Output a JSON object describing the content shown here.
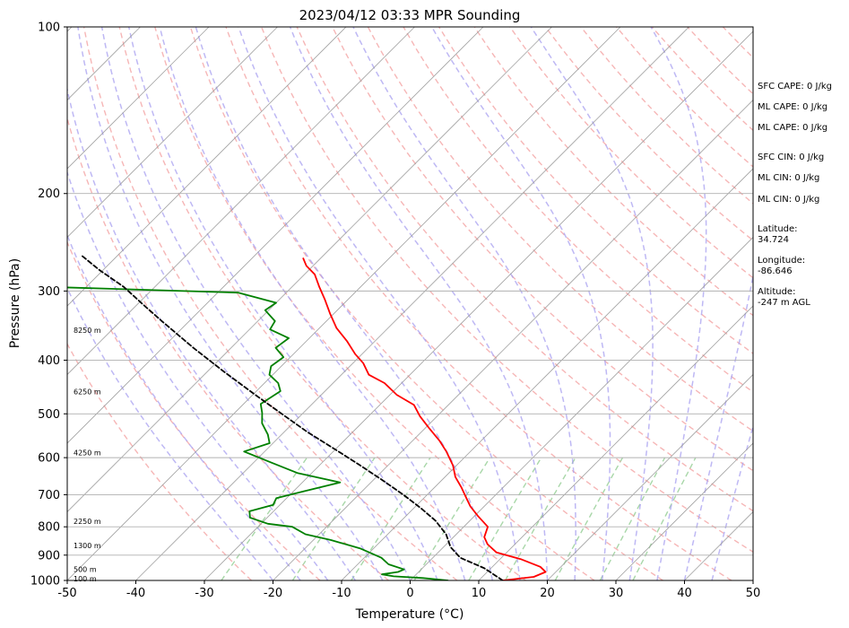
{
  "chart_data": {
    "type": "line",
    "title": "2023/04/12 03:33 MPR Sounding",
    "xlabel": "Temperature (°C)",
    "ylabel": "Pressure (hPa)",
    "xlim": [
      -50,
      50
    ],
    "ylim": [
      1000,
      100
    ],
    "y_scale": "log",
    "skew": "skew-T",
    "grid": true,
    "x_ticks": [
      "-50",
      "-40",
      "-30",
      "-20",
      "-10",
      "0",
      "10",
      "20",
      "30",
      "40",
      "50"
    ],
    "y_ticks": [
      "100",
      "200",
      "300",
      "400",
      "500",
      "600",
      "700",
      "800",
      "900",
      "1000"
    ],
    "height_labels": [
      {
        "text": "8250 m",
        "p": 353
      },
      {
        "text": "6250 m",
        "p": 456
      },
      {
        "text": "4250 m",
        "p": 588
      },
      {
        "text": "2250 m",
        "p": 782
      },
      {
        "text": "1300 m",
        "p": 865
      },
      {
        "text": "500 m",
        "p": 955
      },
      {
        "text": "100 m",
        "p": 993
      }
    ],
    "side_text": [
      {
        "lines": [
          "SFC CAPE: 0 J/kg"
        ]
      },
      {
        "lines": [
          "ML CAPE: 0 J/kg"
        ]
      },
      {
        "lines": [
          "ML CAPE: 0 J/kg"
        ]
      },
      {
        "lines": [
          "SFC CIN: 0 J/kg"
        ]
      },
      {
        "lines": [
          "ML CIN: 0 J/kg"
        ]
      },
      {
        "lines": [
          "ML CIN: 0 J/kg"
        ]
      },
      {
        "lines": [
          "Latitude:",
          "34.724"
        ]
      },
      {
        "lines": [
          "Longitude:",
          "-86.646"
        ]
      },
      {
        "lines": [
          "Altitude:",
          "-247 m AGL"
        ]
      }
    ],
    "colors": {
      "temperature": "#ff0000",
      "dewpoint": "#008000",
      "parcel": "#000000",
      "dry_adiabats": "#f4a4a4",
      "moist_adiabats": "#a8a0f0",
      "mixing_ratio": "#9ed39e",
      "isotherms": "#999999"
    },
    "series": [
      {
        "type": "temperature",
        "points": [
          [
            13.5,
            1000
          ],
          [
            17.5,
            985
          ],
          [
            18.5,
            965
          ],
          [
            17.0,
            945
          ],
          [
            13.0,
            915
          ],
          [
            8.5,
            890
          ],
          [
            6.0,
            860
          ],
          [
            4.5,
            835
          ],
          [
            3.5,
            800
          ],
          [
            0.5,
            765
          ],
          [
            -2.0,
            735
          ],
          [
            -3.8,
            710
          ],
          [
            -6.0,
            680
          ],
          [
            -8.5,
            650
          ],
          [
            -10.5,
            620
          ],
          [
            -13.5,
            585
          ],
          [
            -16.0,
            560
          ],
          [
            -19.5,
            530
          ],
          [
            -22.5,
            505
          ],
          [
            -25.0,
            482
          ],
          [
            -29.0,
            462
          ],
          [
            -32.5,
            440
          ],
          [
            -36.0,
            425
          ],
          [
            -38.5,
            405
          ],
          [
            -41.0,
            390
          ],
          [
            -44.0,
            370
          ],
          [
            -47.5,
            350
          ],
          [
            -50.5,
            330
          ],
          [
            -53.5,
            310
          ],
          [
            -56.0,
            295
          ],
          [
            -58.5,
            280
          ],
          [
            -61.0,
            270
          ],
          [
            -62.5,
            262
          ]
        ]
      },
      {
        "type": "dewpoint",
        "points": [
          [
            5.5,
            1000
          ],
          [
            1.5,
            990
          ],
          [
            -3.0,
            983
          ],
          [
            -5.0,
            975
          ],
          [
            -3.0,
            965
          ],
          [
            -2.5,
            955
          ],
          [
            -5.5,
            935
          ],
          [
            -7.5,
            910
          ],
          [
            -12.0,
            875
          ],
          [
            -17.5,
            845
          ],
          [
            -22.0,
            825
          ],
          [
            -25.0,
            800
          ],
          [
            -29.0,
            790
          ],
          [
            -32.5,
            770
          ],
          [
            -33.5,
            750
          ],
          [
            -31.0,
            730
          ],
          [
            -31.5,
            710
          ],
          [
            -28.5,
            690
          ],
          [
            -24.5,
            665
          ],
          [
            -32.0,
            640
          ],
          [
            -37.5,
            612
          ],
          [
            -43.0,
            585
          ],
          [
            -40.5,
            565
          ],
          [
            -42.0,
            545
          ],
          [
            -44.5,
            520
          ],
          [
            -46.0,
            498
          ],
          [
            -47.5,
            480
          ],
          [
            -46.5,
            455
          ],
          [
            -48.0,
            440
          ],
          [
            -50.5,
            425
          ],
          [
            -51.5,
            410
          ],
          [
            -51.0,
            395
          ],
          [
            -53.5,
            380
          ],
          [
            -53.0,
            365
          ],
          [
            -57.0,
            352
          ],
          [
            -57.5,
            340
          ],
          [
            -60.5,
            325
          ],
          [
            -60.0,
            315
          ],
          [
            -67.0,
            302
          ],
          [
            -95.0,
            295
          ]
        ]
      },
      {
        "type": "parcel",
        "points": [
          [
            13.5,
            1000
          ],
          [
            9.0,
            950
          ],
          [
            4.0,
            910
          ],
          [
            1.0,
            870
          ],
          [
            -1.5,
            825
          ],
          [
            -5.0,
            780
          ],
          [
            -9.0,
            740
          ],
          [
            -13.5,
            700
          ],
          [
            -18.5,
            660
          ],
          [
            -24.0,
            620
          ],
          [
            -30.0,
            580
          ],
          [
            -36.5,
            540
          ],
          [
            -43.0,
            500
          ],
          [
            -50.0,
            460
          ],
          [
            -57.5,
            420
          ],
          [
            -65.5,
            380
          ],
          [
            -74.0,
            340
          ],
          [
            -79.0,
            318
          ],
          [
            -84.5,
            295
          ],
          [
            -90.5,
            275
          ],
          [
            -95.5,
            258
          ]
        ]
      }
    ]
  }
}
